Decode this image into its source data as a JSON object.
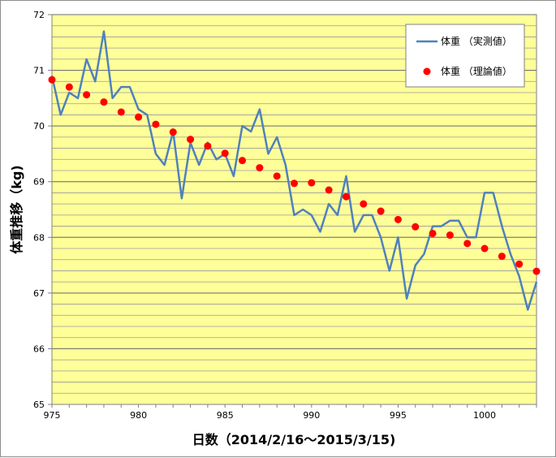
{
  "chart_data": {
    "type": "line",
    "xlabel": "日数（2014/2/16～2015/3/15)",
    "ylabel": "体重推移（kg)",
    "xlim": [
      975,
      1003
    ],
    "ylim": [
      65,
      72
    ],
    "x_ticks": [
      975,
      980,
      985,
      990,
      995,
      1000
    ],
    "y_ticks": [
      65,
      66,
      67,
      68,
      69,
      70,
      71,
      72
    ],
    "grid": true,
    "minor_y_step": 0.2,
    "legend_position": "top-right",
    "plot_background": "#ffff99",
    "series": [
      {
        "name": "体重 （実測値）",
        "kind": "line",
        "color": "#4f81bd",
        "x": [
          975,
          975.5,
          976,
          976.5,
          977,
          977.5,
          978,
          978.5,
          979,
          979.5,
          980,
          980.5,
          981,
          981.5,
          982,
          982.5,
          983,
          983.5,
          984,
          984.5,
          985,
          985.5,
          986,
          986.5,
          987,
          987.5,
          988,
          988.5,
          989,
          989.5,
          990,
          990.5,
          991,
          991.5,
          992,
          992.5,
          993,
          993.5,
          994,
          994.5,
          995,
          995.5,
          996,
          996.5,
          997,
          997.5,
          998,
          998.5,
          999,
          999.5,
          1000,
          1000.5,
          1001,
          1001.5,
          1002,
          1002.5,
          1003
        ],
        "y": [
          70.9,
          70.2,
          70.6,
          70.5,
          71.2,
          70.8,
          71.7,
          70.5,
          70.7,
          70.7,
          70.3,
          70.2,
          69.5,
          69.3,
          69.9,
          68.7,
          69.7,
          69.3,
          69.7,
          69.4,
          69.5,
          69.1,
          70.0,
          69.9,
          70.3,
          69.5,
          69.8,
          69.3,
          68.4,
          68.5,
          68.4,
          68.1,
          68.6,
          68.4,
          69.1,
          68.1,
          68.4,
          68.4,
          68.0,
          67.4,
          68.0,
          66.9,
          67.5,
          67.7,
          68.2,
          68.2,
          68.3,
          68.3,
          68.0,
          68.0,
          68.8,
          68.8,
          68.2,
          67.7,
          67.3,
          66.7,
          67.2
        ]
      },
      {
        "name": "体重 （理論値）",
        "kind": "scatter",
        "color": "#ff0000",
        "x": [
          975,
          976,
          977,
          978,
          979,
          980,
          981,
          982,
          983,
          984,
          985,
          986,
          987,
          988,
          989,
          990,
          991,
          992,
          993,
          994,
          995,
          996,
          997,
          998,
          999,
          1000,
          1001,
          1002,
          1003
        ],
        "y": [
          70.83,
          70.7,
          70.56,
          70.43,
          70.25,
          70.16,
          70.03,
          69.89,
          69.76,
          69.64,
          69.51,
          69.38,
          69.25,
          69.1,
          68.97,
          68.98,
          68.85,
          68.73,
          68.6,
          68.47,
          68.32,
          68.19,
          68.07,
          68.04,
          67.89,
          67.8,
          67.66,
          67.52,
          67.39
        ]
      }
    ]
  }
}
